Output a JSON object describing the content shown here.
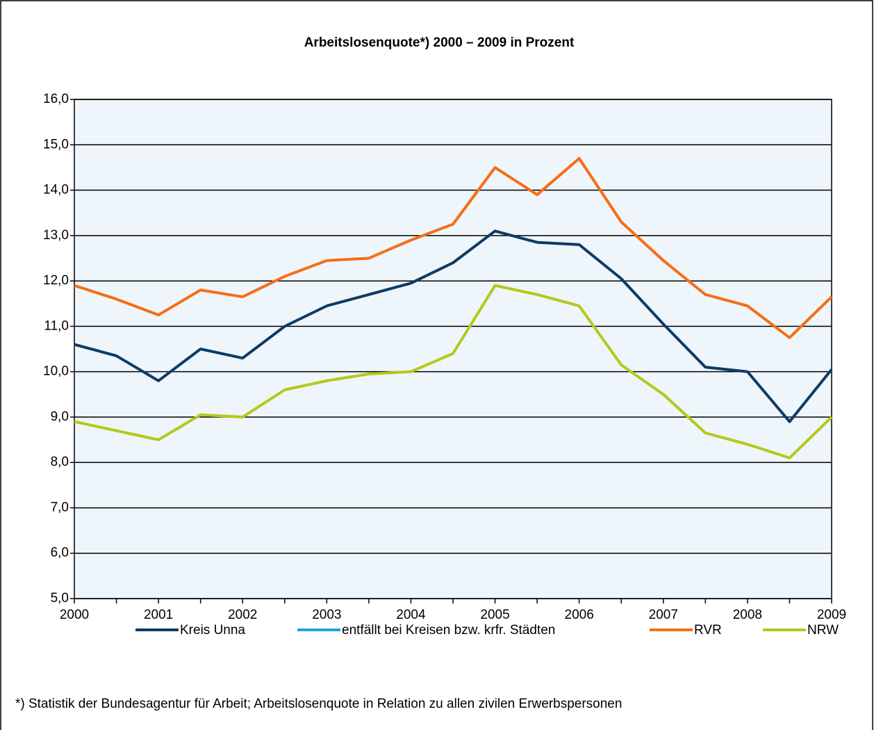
{
  "chart_data": {
    "type": "line",
    "title": "Arbeitslosenquote*) 2000 – 2009 in Prozent",
    "categories": [
      "2000",
      null,
      "2001",
      null,
      "2002",
      null,
      "2003",
      null,
      "2004",
      null,
      "2005",
      null,
      "2006",
      null,
      "2007",
      null,
      "2008",
      null,
      "2009"
    ],
    "series": [
      {
        "name": "Kreis Unna",
        "color": "#0d3b66",
        "values": [
          10.6,
          10.35,
          9.8,
          10.5,
          10.3,
          11.0,
          11.45,
          11.7,
          11.95,
          12.4,
          13.1,
          12.85,
          12.8,
          12.05,
          11.05,
          10.1,
          10.0,
          8.9,
          10.05
        ]
      },
      {
        "name": "entfällt bei Kreisen bzw. krfr. Städten",
        "color": "#1fa3dc",
        "values": [
          null,
          null,
          null,
          null,
          null,
          null,
          null,
          null,
          null,
          null,
          null,
          null,
          null,
          null,
          null,
          null,
          null,
          null,
          null
        ]
      },
      {
        "name": "RVR",
        "color": "#f76d16",
        "values": [
          11.9,
          11.6,
          11.25,
          11.8,
          11.65,
          12.1,
          12.45,
          12.5,
          12.9,
          13.25,
          14.5,
          13.9,
          14.7,
          13.3,
          12.45,
          11.7,
          11.45,
          10.75,
          11.65
        ]
      },
      {
        "name": "NRW",
        "color": "#b5c81a",
        "values": [
          8.9,
          8.7,
          8.5,
          9.05,
          9.0,
          9.6,
          9.8,
          9.95,
          10.0,
          10.4,
          11.9,
          11.7,
          11.45,
          10.15,
          9.5,
          8.65,
          8.4,
          8.1,
          9.0
        ]
      }
    ],
    "ylim": [
      5,
      16
    ],
    "yticks": [
      {
        "value": 5,
        "label": "5,0"
      },
      {
        "value": 6,
        "label": "6,0"
      },
      {
        "value": 7,
        "label": "7,0"
      },
      {
        "value": 8,
        "label": "8,0"
      },
      {
        "value": 9,
        "label": "9,0"
      },
      {
        "value": 10,
        "label": "10,0"
      },
      {
        "value": 11,
        "label": "11,0"
      },
      {
        "value": 12,
        "label": "12,0"
      },
      {
        "value": 13,
        "label": "13,0"
      },
      {
        "value": 14,
        "label": "14,0"
      },
      {
        "value": 15,
        "label": "15,0"
      },
      {
        "value": 16,
        "label": "16,0"
      }
    ],
    "grid": true,
    "legend": "bottom",
    "footnote": "*) Statistik der Bundesagentur für Arbeit; Arbeitslosenquote in Relation zu allen zivilen Erwerbspersonen"
  }
}
